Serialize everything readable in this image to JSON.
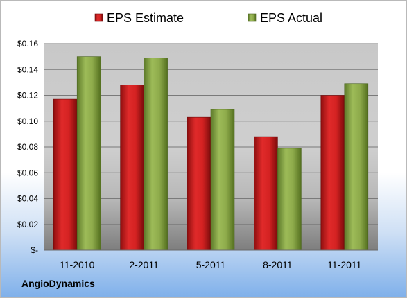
{
  "company": "AngioDynamics",
  "chart_data": {
    "type": "bar",
    "categories": [
      "11-2010",
      "2-2011",
      "5-2011",
      "8-2011",
      "11-2011"
    ],
    "series": [
      {
        "name": "EPS Estimate",
        "values": [
          0.117,
          0.128,
          0.103,
          0.088,
          0.12
        ],
        "color": "#c81e1e"
      },
      {
        "name": "EPS Actual",
        "values": [
          0.15,
          0.149,
          0.109,
          0.079,
          0.129
        ],
        "color": "#8fae4a"
      }
    ],
    "yticks": [
      "$-",
      "$0.02",
      "$0.04",
      "$0.06",
      "$0.08",
      "$0.10",
      "$0.12",
      "$0.14",
      "$0.16"
    ],
    "ylim": [
      0,
      0.16
    ],
    "grid": true,
    "legend": "top"
  }
}
